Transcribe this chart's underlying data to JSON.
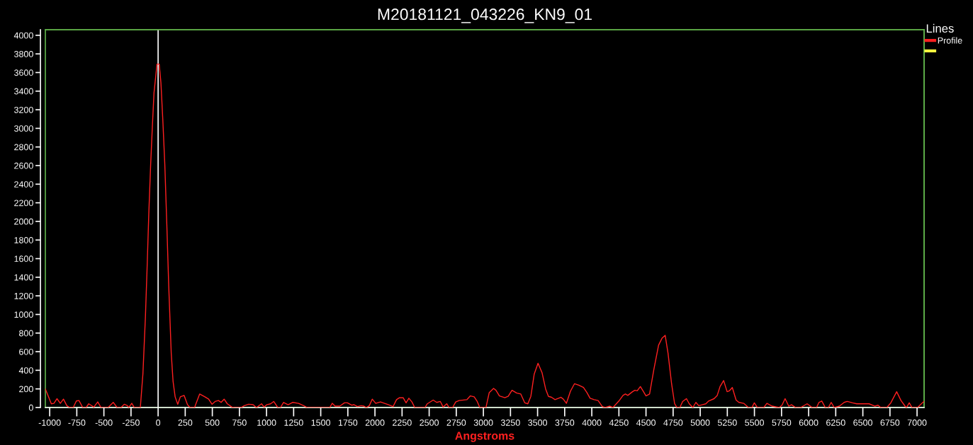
{
  "chart_data": {
    "type": "line",
    "title": "M20181121_043226_KN9_01",
    "xlabel": "Angstroms",
    "legend_title": "Lines",
    "legend": "top right",
    "xlim": [
      -1040,
      7065
    ],
    "ylim": [
      0,
      4060
    ],
    "xticks": [
      -1000,
      -750,
      -500,
      -250,
      0,
      250,
      500,
      750,
      1000,
      1250,
      1500,
      1750,
      2000,
      2250,
      2500,
      2750,
      3000,
      3250,
      3500,
      3750,
      4000,
      4250,
      4500,
      4750,
      5000,
      5250,
      5500,
      5750,
      6000,
      6250,
      6500,
      6750,
      7000
    ],
    "yticks": [
      0,
      200,
      400,
      600,
      800,
      1000,
      1200,
      1400,
      1600,
      1800,
      2000,
      2200,
      2400,
      2600,
      2800,
      3000,
      3200,
      3400,
      3600,
      3800,
      4000
    ],
    "ref_lines": [
      {
        "axis": "x",
        "value": 0,
        "color": "#ffffff"
      }
    ],
    "series": [
      {
        "name": "Profile",
        "color": "#ff2020",
        "x": [
          -1040,
          -985,
          -961,
          -933,
          -902,
          -873,
          -842,
          -814,
          -783,
          -754,
          -730,
          -695,
          -664,
          -640,
          -593,
          -557,
          -526,
          -462,
          -414,
          -378,
          -343,
          -312,
          -283,
          -271,
          -243,
          -219,
          -164,
          -140,
          -117,
          -100,
          -86,
          -69,
          -52,
          -38,
          -21,
          -10,
          10,
          26,
          43,
          62,
          81,
          98,
          121,
          138,
          157,
          181,
          205,
          240,
          271,
          295,
          336,
          383,
          431,
          466,
          497,
          526,
          557,
          581,
          609,
          638,
          681,
          704,
          764,
          795,
          835,
          876,
          907,
          954,
          978,
          1002,
          1038,
          1066,
          1104,
          1128,
          1157,
          1199,
          1240,
          1295,
          1342,
          1376,
          1582,
          1606,
          1632,
          1676,
          1719,
          1746,
          1785,
          1807,
          1839,
          1872,
          1898,
          1920,
          1948,
          1975,
          2007,
          2051,
          2112,
          2167,
          2199,
          2226,
          2260,
          2287,
          2313,
          2341,
          2367,
          2461,
          2483,
          2537,
          2570,
          2603,
          2629,
          2662,
          2684,
          2716,
          2745,
          2777,
          2849,
          2880,
          2915,
          2941,
          2967,
          3024,
          3054,
          3094,
          3116,
          3148,
          3198,
          3229,
          3264,
          3308,
          3345,
          3382,
          3410,
          3438,
          3469,
          3504,
          3541,
          3574,
          3600,
          3628,
          3661,
          3715,
          3737,
          3766,
          3803,
          3840,
          3879,
          3923,
          3955,
          3984,
          4021,
          4058,
          4097,
          4123,
          4167,
          4195,
          4250,
          4288,
          4310,
          4332,
          4376,
          4397,
          4419,
          4448,
          4474,
          4500,
          4533,
          4572,
          4616,
          4648,
          4677,
          4703,
          4736,
          4764,
          4786,
          4812,
          4838,
          4873,
          4899,
          4932,
          4960,
          4986,
          5019,
          5052,
          5078,
          5128,
          5157,
          5183,
          5216,
          5248,
          5270,
          5296,
          5331,
          5357,
          5401,
          5445,
          5477,
          5499,
          5527,
          5586,
          5615,
          5663,
          5728,
          5754,
          5783,
          5816,
          5842,
          5881,
          5925,
          5986,
          6034,
          6073,
          6095,
          6121,
          6154,
          6182,
          6208,
          6236,
          6284,
          6328,
          6356,
          6404,
          6444,
          6557,
          6612,
          6640,
          6666,
          6721,
          6758,
          6812,
          6852,
          6889,
          6902,
          6928,
          6954,
          7004,
          7063
        ],
        "values": [
          200,
          40,
          45,
          95,
          45,
          90,
          20,
          0,
          0,
          70,
          75,
          0,
          0,
          40,
          5,
          60,
          0,
          0,
          55,
          0,
          0,
          35,
          20,
          0,
          45,
          0,
          0,
          365,
          975,
          1555,
          2080,
          2605,
          3045,
          3380,
          3570,
          3690,
          3690,
          3490,
          3100,
          2605,
          1940,
          1305,
          585,
          280,
          115,
          35,
          115,
          130,
          30,
          0,
          0,
          145,
          115,
          90,
          35,
          65,
          75,
          55,
          90,
          40,
          5,
          0,
          0,
          20,
          35,
          30,
          0,
          40,
          5,
          30,
          40,
          65,
          0,
          0,
          55,
          30,
          55,
          45,
          20,
          0,
          0,
          45,
          15,
          15,
          50,
          50,
          25,
          30,
          10,
          20,
          15,
          0,
          20,
          90,
          45,
          60,
          35,
          10,
          85,
          105,
          105,
          50,
          100,
          60,
          0,
          0,
          40,
          80,
          55,
          65,
          5,
          40,
          0,
          0,
          60,
          75,
          85,
          125,
          115,
          70,
          0,
          0,
          160,
          205,
          185,
          125,
          105,
          120,
          185,
          155,
          145,
          50,
          40,
          120,
          360,
          475,
          375,
          200,
          120,
          110,
          85,
          110,
          90,
          45,
          175,
          255,
          240,
          215,
          160,
          100,
          85,
          75,
          10,
          0,
          15,
          0,
          70,
          130,
          145,
          130,
          170,
          185,
          180,
          225,
          175,
          125,
          145,
          405,
          670,
          745,
          775,
          585,
          255,
          40,
          0,
          0,
          65,
          95,
          40,
          0,
          55,
          20,
          30,
          40,
          70,
          95,
          130,
          225,
          290,
          170,
          180,
          215,
          80,
          55,
          45,
          0,
          0,
          50,
          0,
          0,
          45,
          15,
          0,
          25,
          95,
          15,
          30,
          0,
          0,
          40,
          0,
          0,
          55,
          70,
          0,
          0,
          55,
          0,
          15,
          55,
          65,
          50,
          40,
          40,
          15,
          25,
          0,
          0,
          50,
          170,
          75,
          15,
          0,
          50,
          0,
          0,
          65
        ]
      },
      {
        "color": "#ffff40"
      }
    ]
  }
}
